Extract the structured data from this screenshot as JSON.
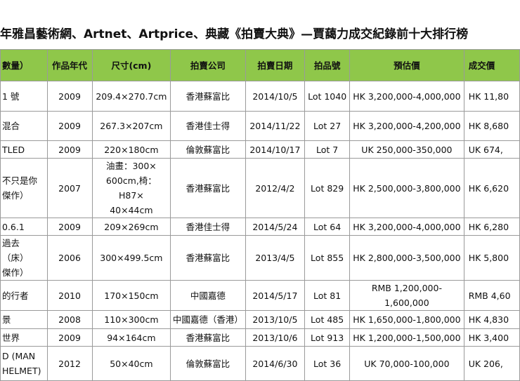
{
  "header": {
    "title": "年雅昌藝術網、Artnet、Artprice、典藏《拍賣大典》—賈藹力成交紀錄前十大排行榜"
  },
  "table": {
    "columns": [
      "數量）",
      "作品年代",
      "尺寸(cm)",
      "拍賣公司",
      "拍賣日期",
      "拍品號",
      "預估價",
      "成交價"
    ],
    "rows": [
      [
        "1 號",
        "2009",
        "209.4×270.7cm",
        "香港蘇富比",
        "2014/10/5",
        "Lot 1040",
        "HK 3,200,000-4,000,000",
        "HK 11,80"
      ],
      [
        "混合",
        "2009",
        "267.3×207cm",
        "香港佳士得",
        "2014/11/22",
        "Lot 27",
        "HK 3,200,000-4,200,000",
        "HK 8,680"
      ],
      [
        "TLED",
        "2009",
        "220×180cm",
        "倫敦蘇富比",
        "2014/10/17",
        "Lot 7",
        "UK 250,000-350,000",
        "UK 674,"
      ],
      [
        "不只是你\n傑作）",
        "2007",
        "油畫：300×\n600cm,椅：H87×\n40×44cm",
        "香港蘇富比",
        "2012/4/2",
        "Lot 829",
        "HK 2,500,000-3,800,000",
        "HK 6,620"
      ],
      [
        "0.6.1",
        "2009",
        "209×269cm",
        "香港佳士得",
        "2014/5/24",
        "Lot 64",
        "HK 3,200,000-4,000,000",
        "HK 6,280"
      ],
      [
        "過去（床）\n傑作）",
        "2006",
        "300×499.5cm",
        "香港蘇富比",
        "2013/4/5",
        "Lot 855",
        "HK 2,800,000-3,500,000",
        "HK 5,800"
      ],
      [
        "的行者",
        "2010",
        "170×150cm",
        "中國嘉德",
        "2014/5/17",
        "Lot 81",
        "RMB 1,200,000-1,600,000",
        "RMB 4,60"
      ],
      [
        "景",
        "2008",
        "110×300cm",
        "中國嘉德（香港）",
        "2013/10/5",
        "Lot 485",
        "HK 1,650,000-1,800,000",
        "HK 4,830"
      ],
      [
        "世界",
        "2009",
        "94×164cm",
        "香港蘇富比",
        "2013/10/6",
        "Lot 913",
        "HK 1,200,000-1,500,000",
        "HK 3,400"
      ],
      [
        "D (MAN\nHELMET)",
        "2012",
        "50×40cm",
        "倫敦蘇富比",
        "2014/6/30",
        "Lot 36",
        "UK 70,000-100,000",
        "UK 206,"
      ]
    ]
  }
}
